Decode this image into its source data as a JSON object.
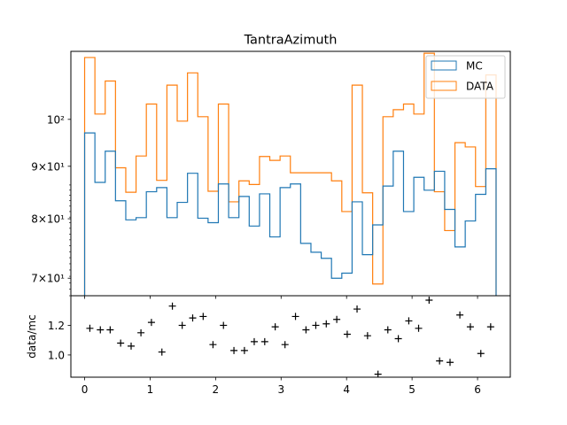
{
  "chart_data": {
    "type": "histogram-step",
    "title": "TantraAzimuth",
    "xlim": [
      -0.21,
      6.5
    ],
    "top_panel": {
      "yscale": "log",
      "ylim": [
        67.3,
        116.5
      ],
      "yticks": [
        {
          "value": 70,
          "label": "7×10¹"
        },
        {
          "value": 80,
          "label": "8×10¹"
        },
        {
          "value": 90,
          "label": "9×10¹"
        },
        {
          "value": 100,
          "label": "10²"
        }
      ],
      "legend": {
        "placement": "upper-right"
      },
      "series": [
        {
          "name": "MC",
          "color": "#1f77b4",
          "values": [
            97.0,
            86.8,
            93.1,
            83.3,
            79.8,
            80.2,
            85.0,
            85.8,
            80.2,
            83.0,
            88.6,
            80.1,
            79.3,
            86.5,
            80.2,
            84.1,
            78.7,
            84.6,
            76.8,
            85.8,
            86.5,
            75.7,
            74.2,
            73.2,
            70.0,
            70.8,
            83.1,
            73.8,
            78.9,
            86.1,
            93.1,
            81.3,
            87.8,
            85.3,
            89.0,
            81.7,
            75.1,
            79.6,
            84.5,
            89.5
          ]
        },
        {
          "name": "DATA",
          "color": "#ff7f0e",
          "values": [
            114.9,
            101.2,
            109.0,
            89.7,
            84.9,
            92.1,
            103.5,
            87.2,
            108.0,
            99.6,
            111.0,
            100.6,
            85.1,
            103.5,
            83.1,
            87.1,
            86.4,
            92.0,
            91.2,
            92.1,
            88.7,
            88.7,
            88.7,
            88.7,
            87.1,
            81.3,
            108.0,
            84.8,
            69.1,
            100.6,
            102.2,
            103.5,
            101.2,
            116.0,
            85.0,
            77.9,
            94.9,
            94.0,
            86.0,
            110.5
          ]
        }
      ]
    },
    "bottom_panel": {
      "ylabel": "data/mc",
      "ylim": [
        0.85,
        1.4
      ],
      "yticks": [
        {
          "value": 1.0,
          "label": "1.0"
        },
        {
          "value": 1.2,
          "label": "1.2"
        }
      ],
      "series": [
        {
          "name": "ratio",
          "marker": "+",
          "color": "#000000",
          "x": [
            0.08,
            0.24,
            0.39,
            0.55,
            0.71,
            0.86,
            1.02,
            1.18,
            1.34,
            1.49,
            1.65,
            1.81,
            1.96,
            2.12,
            2.28,
            2.44,
            2.59,
            2.75,
            2.91,
            3.06,
            3.22,
            3.38,
            3.53,
            3.69,
            3.85,
            4.01,
            4.16,
            4.32,
            4.48,
            4.63,
            4.79,
            4.95,
            5.1,
            5.26,
            5.42,
            5.58,
            5.73,
            5.89,
            6.05,
            6.2
          ],
          "y": [
            1.18,
            1.17,
            1.17,
            1.08,
            1.06,
            1.15,
            1.22,
            1.02,
            1.33,
            1.2,
            1.25,
            1.26,
            1.07,
            1.2,
            1.03,
            1.03,
            1.09,
            1.09,
            1.19,
            1.07,
            1.26,
            1.17,
            1.2,
            1.21,
            1.24,
            1.14,
            1.31,
            1.13,
            0.87,
            1.17,
            1.11,
            1.23,
            1.18,
            1.37,
            0.96,
            0.95,
            1.27,
            1.19,
            1.01,
            1.19
          ]
        }
      ]
    },
    "xticks": [
      {
        "value": 0,
        "label": "0"
      },
      {
        "value": 1,
        "label": "1"
      },
      {
        "value": 2,
        "label": "2"
      },
      {
        "value": 3,
        "label": "3"
      },
      {
        "value": 4,
        "label": "4"
      },
      {
        "value": 5,
        "label": "5"
      },
      {
        "value": 6,
        "label": "6"
      }
    ],
    "bins": {
      "start": 0.0,
      "end": 6.2832,
      "count": 40
    }
  }
}
